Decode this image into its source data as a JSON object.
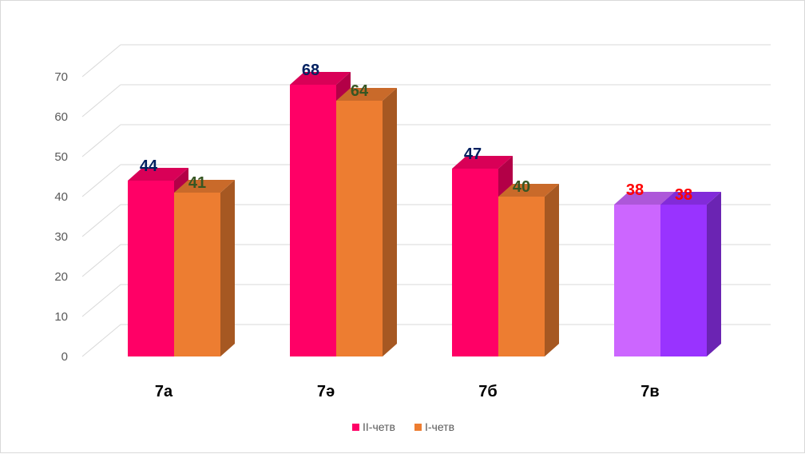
{
  "chart_data": {
    "type": "bar",
    "title": "",
    "xlabel": "",
    "ylabel": "",
    "categories": [
      "7а",
      "7ә",
      "7б",
      "7в"
    ],
    "series": [
      {
        "name": "II-четв",
        "values": [
          44,
          68,
          47,
          38
        ],
        "color": "#ff0066"
      },
      {
        "name": "I-четв",
        "values": [
          41,
          64,
          40,
          38
        ],
        "color": "#ed7d31"
      }
    ],
    "special_colors": {
      "7в": [
        "#cc66ff",
        "#9933ff"
      ]
    },
    "data_label_colors": {
      "II-четв": "#002060",
      "I-четв": "#375623",
      "7в": "#ff0000"
    },
    "ylim": [
      0,
      70
    ],
    "yticks": [
      0,
      10,
      20,
      30,
      40,
      50,
      60,
      70
    ],
    "grid": true,
    "three_d": true,
    "legend": "bottom"
  }
}
